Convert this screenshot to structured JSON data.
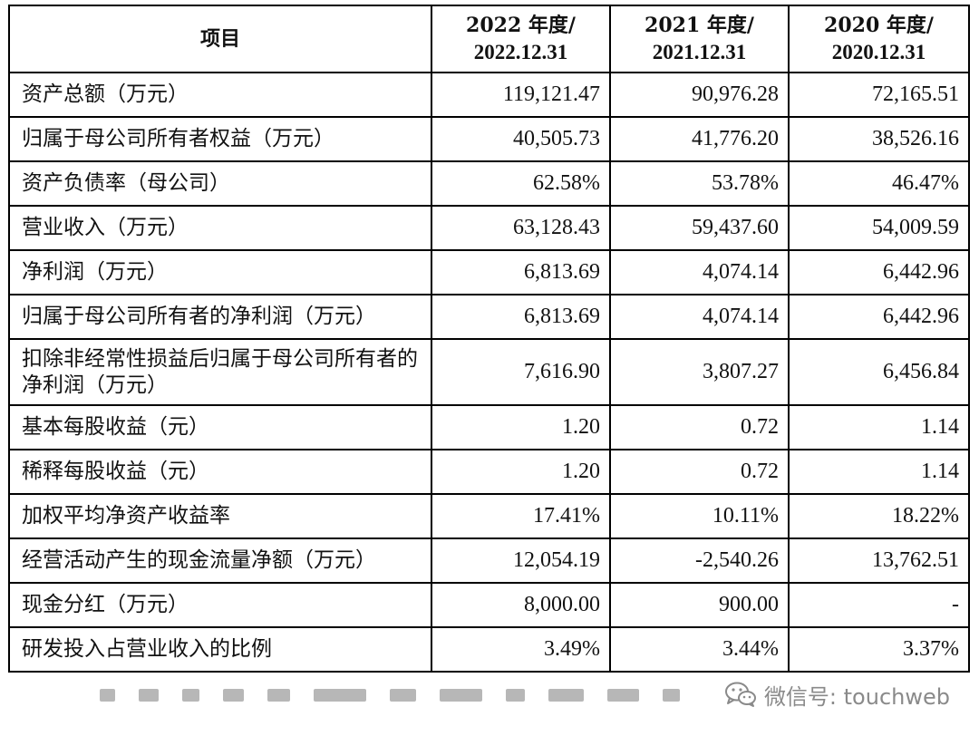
{
  "table": {
    "headers": {
      "item": "项目",
      "years": [
        {
          "year": "2022 年度/",
          "date": "2022.12.31"
        },
        {
          "year": "2021 年度/",
          "date": "2021.12.31"
        },
        {
          "year": "2020 年度/",
          "date": "2020.12.31"
        }
      ]
    },
    "rows": [
      {
        "label": "资产总额（万元）",
        "values": [
          "119,121.47",
          "90,976.28",
          "72,165.51"
        ]
      },
      {
        "label": "归属于母公司所有者权益（万元）",
        "values": [
          "40,505.73",
          "41,776.20",
          "38,526.16"
        ]
      },
      {
        "label": "资产负债率（母公司）",
        "values": [
          "62.58%",
          "53.78%",
          "46.47%"
        ]
      },
      {
        "label": "营业收入（万元）",
        "values": [
          "63,128.43",
          "59,437.60",
          "54,009.59"
        ]
      },
      {
        "label": "净利润（万元）",
        "values": [
          "6,813.69",
          "4,074.14",
          "6,442.96"
        ]
      },
      {
        "label": "归属于母公司所有者的净利润（万元）",
        "values": [
          "6,813.69",
          "4,074.14",
          "6,442.96"
        ]
      },
      {
        "label": "扣除非经常性损益后归属于母公司所有者的净利润（万元）",
        "values": [
          "7,616.90",
          "3,807.27",
          "6,456.84"
        ]
      },
      {
        "label": "基本每股收益（元）",
        "values": [
          "1.20",
          "0.72",
          "1.14"
        ]
      },
      {
        "label": "稀释每股收益（元）",
        "values": [
          "1.20",
          "0.72",
          "1.14"
        ]
      },
      {
        "label": "加权平均净资产收益率",
        "values": [
          "17.41%",
          "10.11%",
          "18.22%"
        ]
      },
      {
        "label": "经营活动产生的现金流量净额（万元）",
        "values": [
          "12,054.19",
          "-2,540.26",
          "13,762.51"
        ]
      },
      {
        "label": "现金分红（万元）",
        "values": [
          "8,000.00",
          "900.00",
          "-"
        ]
      },
      {
        "label": "研发投入占营业收入的比例",
        "values": [
          "3.49%",
          "3.44%",
          "3.37%"
        ]
      }
    ]
  },
  "watermark": {
    "icon": "wechat-icon",
    "text": "微信号: touchweb",
    "color": "#8a8a8a"
  }
}
